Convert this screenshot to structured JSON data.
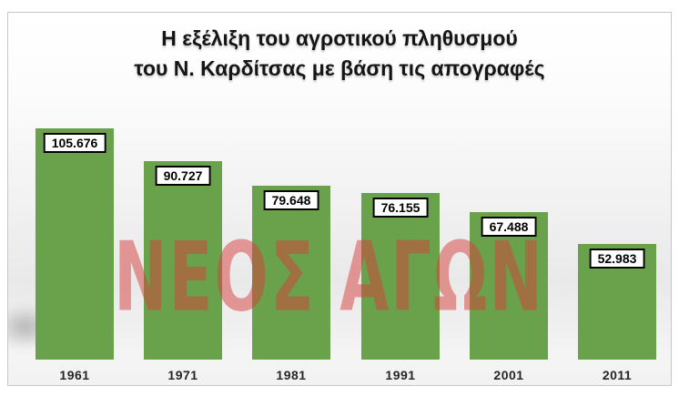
{
  "slide": {
    "title_line1": "Η εξέλιξη του αγροτικού πληθυσμού",
    "title_line2": "του Ν. Καρδίτσας  με βάση τις απογραφές"
  },
  "watermark": {
    "text": "ΝΕΟΣ ΑΓΩΝ",
    "color_rgba": "rgba(213,61,57,0.5)"
  },
  "colors": {
    "bar": "#6aa24c",
    "value_box_bg": "#ffffff",
    "value_box_border": "#000000",
    "slide_border": "#c7c7c7"
  },
  "chart_data": {
    "type": "bar",
    "title": "Η εξέλιξη του αγροτικού πληθυσμού του Ν. Καρδίτσας με βάση τις απογραφές",
    "categories": [
      "1961",
      "1971",
      "1981",
      "1991",
      "2001",
      "2011"
    ],
    "values": [
      105676,
      90727,
      79648,
      76155,
      67488,
      52983
    ],
    "value_labels": [
      "105.676",
      "90.727",
      "79.648",
      "76.155",
      "67.488",
      "52.983"
    ],
    "xlabel": "",
    "ylabel": "",
    "ylim": [
      0,
      110000
    ],
    "grid": false,
    "legend": false,
    "bar_color": "#6aa24c",
    "data_label_style": "boxed-white-black-border"
  }
}
